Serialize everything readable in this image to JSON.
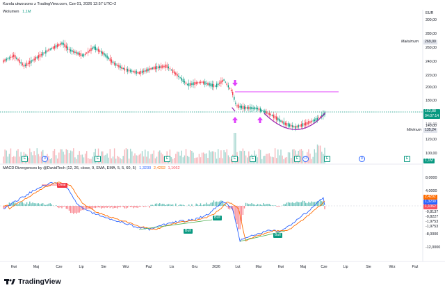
{
  "header": {
    "title": "Karola utworzono z TradingView.com, Cze 01, 2026 12:57 UTC+2",
    "volume_label": "Wolumen",
    "volume_value": "1,1M",
    "macd_label": "MACD Divergences by @DavidTech (12, 26, close, 9, EMA, EMA, 5, 5, 60, 5)",
    "macd_values": [
      "1,3230",
      "2,4292",
      "1,1062"
    ],
    "macd_value_colors": [
      "#2962ff",
      "#ff6d00",
      "#f7525f"
    ]
  },
  "price_axis": {
    "currency": "EUR",
    "ticks": [
      "300,00",
      "280,00",
      "260,00",
      "240,00",
      "220,00",
      "200,00",
      "180,00",
      "160,00",
      "140,00",
      "120,00"
    ],
    "max_label": "Maksimum",
    "max_value": "269,00",
    "min_label": "Minimum",
    "min_value": "135,24",
    "current_price": "162,88",
    "current_time": "04:07:14",
    "prev_tick": "145,00",
    "volume_ticks": [
      "100,00",
      "50,00",
      "1,1M"
    ],
    "macd_ticks": [
      "8,0000",
      "4,0000",
      "0,0000",
      "-8,0000",
      "-12,0000"
    ],
    "macd_tags": [
      "2,4292",
      "1,3230",
      "1,1062"
    ],
    "macd_extra": [
      "-0,8137",
      "-0,8227",
      "-1,9753",
      "-1,9753"
    ]
  },
  "time_axis": {
    "labels": [
      "Kwi",
      "Maj",
      "Cze",
      "Lip",
      "Sie",
      "Wrz",
      "Paź",
      "Lis",
      "Gru",
      "2026",
      "Lut",
      "Mar",
      "Kwi",
      "Maj",
      "Cze",
      "Lip",
      "Sie",
      "Wrz",
      "Paź"
    ]
  },
  "annotations": {
    "bear_label": "Bear",
    "bull_labels": [
      "Bull",
      "Bull",
      "Bull"
    ],
    "event_markers": [
      "E",
      "D",
      "E",
      "E",
      "E",
      "E",
      "E",
      "D",
      "E",
      "D",
      "E"
    ]
  },
  "footer": {
    "brand": "TradingView"
  },
  "colors": {
    "up": "#089981",
    "down": "#f23645",
    "macd": "#2962ff",
    "signal": "#ff6d00",
    "arc": "#9c27b0",
    "pink": "#e040fb"
  }
}
